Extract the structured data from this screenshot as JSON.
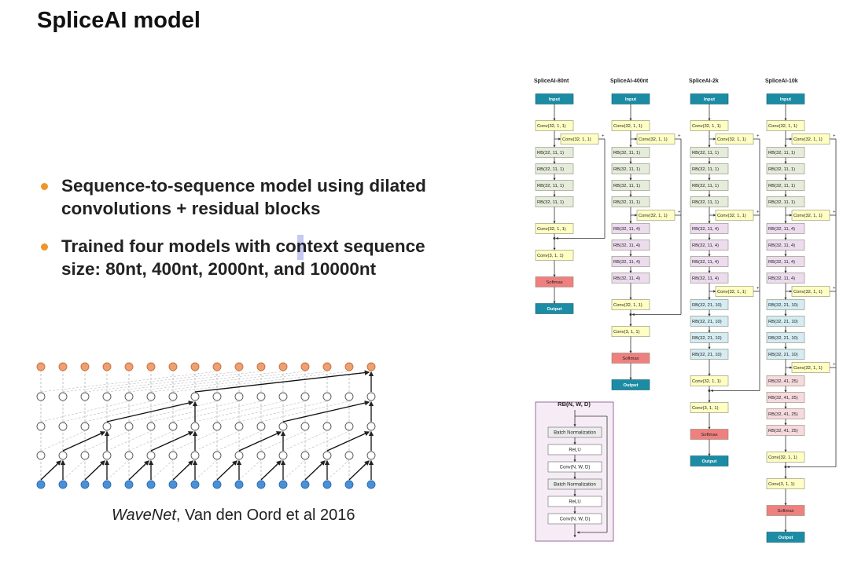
{
  "header": {
    "title": "SpliceAI model"
  },
  "bullets": [
    {
      "lines": [
        "Sequence-to-sequence model using dilated",
        "convolutions + residual blocks"
      ]
    },
    {
      "lines": [
        "Trained four models with context sequence",
        "size: 80nt, 400nt, 2000nt, and 10000nt"
      ]
    }
  ],
  "figure": {
    "caption": {
      "italic": "WaveNet",
      "rest": ", Van den Oord et al 2016"
    }
  },
  "models": [
    {
      "title": "SpliceAI-80nt",
      "nodes": [
        {
          "label": "Input",
          "color": "#1c8ca4"
        },
        {
          "label": "Conv(32, 1, 1)",
          "color": "#ffffc4"
        },
        {
          "label": "Conv(32, 1, 1)",
          "color": "#ffffc4"
        },
        {
          "label": "RB(32, 11, 1)",
          "color": "#e6ecdc"
        },
        {
          "label": "RB(32, 11, 1)",
          "color": "#e6ecdc"
        },
        {
          "label": "RB(32, 11, 1)",
          "color": "#e6ecdc"
        },
        {
          "label": "RB(32, 11, 1)",
          "color": "#e6ecdc"
        },
        {
          "label": "Conv(32, 1, 1)",
          "color": "#ffffc4"
        },
        {
          "label": "Conv(3, 1, 1)",
          "color": "#ffffc4"
        },
        {
          "label": "Softmax",
          "color": "#f08080"
        },
        {
          "label": "Output",
          "color": "#1c8ca4"
        }
      ]
    },
    {
      "title": "SpliceAI-400nt",
      "nodes": [
        {
          "label": "Input",
          "color": "#1c8ca4"
        },
        {
          "label": "Conv(32, 1, 1)",
          "color": "#ffffc4"
        },
        {
          "label": "Conv(32, 1, 1)",
          "color": "#ffffc4"
        },
        {
          "label": "RB(32, 11, 1)",
          "color": "#e6ecdc"
        },
        {
          "label": "RB(32, 11, 1)",
          "color": "#e6ecdc"
        },
        {
          "label": "RB(32, 11, 1)",
          "color": "#e6ecdc"
        },
        {
          "label": "RB(32, 11, 1)",
          "color": "#e6ecdc"
        },
        {
          "label": "Conv(32, 1, 1)",
          "color": "#ffffc4"
        },
        {
          "label": "RB(32, 11, 4)",
          "color": "#ecdcee"
        },
        {
          "label": "RB(32, 11, 4)",
          "color": "#ecdcee"
        },
        {
          "label": "RB(32, 11, 4)",
          "color": "#ecdcee"
        },
        {
          "label": "RB(32, 11, 4)",
          "color": "#ecdcee"
        },
        {
          "label": "Conv(32, 1, 1)",
          "color": "#ffffc4"
        },
        {
          "label": "Conv(3, 1, 1)",
          "color": "#ffffc4"
        },
        {
          "label": "Softmax",
          "color": "#f08080"
        },
        {
          "label": "Output",
          "color": "#1c8ca4"
        }
      ]
    },
    {
      "title": "SpliceAI-2k",
      "nodes": [
        {
          "label": "Input",
          "color": "#1c8ca4"
        },
        {
          "label": "Conv(32, 1, 1)",
          "color": "#ffffc4"
        },
        {
          "label": "Conv(32, 1, 1)",
          "color": "#ffffc4"
        },
        {
          "label": "RB(32, 11, 1)",
          "color": "#e6ecdc"
        },
        {
          "label": "RB(32, 11, 1)",
          "color": "#e6ecdc"
        },
        {
          "label": "RB(32, 11, 1)",
          "color": "#e6ecdc"
        },
        {
          "label": "RB(32, 11, 1)",
          "color": "#e6ecdc"
        },
        {
          "label": "Conv(32, 1, 1)",
          "color": "#ffffc4"
        },
        {
          "label": "RB(32, 11, 4)",
          "color": "#ecdcee"
        },
        {
          "label": "RB(32, 11, 4)",
          "color": "#ecdcee"
        },
        {
          "label": "RB(32, 11, 4)",
          "color": "#ecdcee"
        },
        {
          "label": "RB(32, 11, 4)",
          "color": "#ecdcee"
        },
        {
          "label": "Conv(32, 1, 1)",
          "color": "#ffffc4"
        },
        {
          "label": "RB(32, 21, 10)",
          "color": "#d4ecf2"
        },
        {
          "label": "RB(32, 21, 10)",
          "color": "#d4ecf2"
        },
        {
          "label": "RB(32, 21, 10)",
          "color": "#d4ecf2"
        },
        {
          "label": "RB(32, 21, 10)",
          "color": "#d4ecf2"
        },
        {
          "label": "Conv(32, 1, 1)",
          "color": "#ffffc4"
        },
        {
          "label": "Conv(3, 1, 1)",
          "color": "#ffffc4"
        },
        {
          "label": "Softmax",
          "color": "#f08080"
        },
        {
          "label": "Output",
          "color": "#1c8ca4"
        }
      ]
    },
    {
      "title": "SpliceAI-10k",
      "nodes": [
        {
          "label": "Input",
          "color": "#1c8ca4"
        },
        {
          "label": "Conv(32, 1, 1)",
          "color": "#ffffc4"
        },
        {
          "label": "Conv(32, 1, 1)",
          "color": "#ffffc4"
        },
        {
          "label": "RB(32, 11, 1)",
          "color": "#e6ecdc"
        },
        {
          "label": "RB(32, 11, 1)",
          "color": "#e6ecdc"
        },
        {
          "label": "RB(32, 11, 1)",
          "color": "#e6ecdc"
        },
        {
          "label": "RB(32, 11, 1)",
          "color": "#e6ecdc"
        },
        {
          "label": "Conv(32, 1, 1)",
          "color": "#ffffc4"
        },
        {
          "label": "RB(32, 11, 4)",
          "color": "#ecdcee"
        },
        {
          "label": "RB(32, 11, 4)",
          "color": "#ecdcee"
        },
        {
          "label": "RB(32, 11, 4)",
          "color": "#ecdcee"
        },
        {
          "label": "RB(32, 11, 4)",
          "color": "#ecdcee"
        },
        {
          "label": "Conv(32, 1, 1)",
          "color": "#ffffc4"
        },
        {
          "label": "RB(32, 21, 10)",
          "color": "#d4ecf2"
        },
        {
          "label": "RB(32, 21, 10)",
          "color": "#d4ecf2"
        },
        {
          "label": "RB(32, 21, 10)",
          "color": "#d4ecf2"
        },
        {
          "label": "RB(32, 21, 10)",
          "color": "#d4ecf2"
        },
        {
          "label": "Conv(32, 1, 1)",
          "color": "#ffffc4"
        },
        {
          "label": "RB(32, 41, 25)",
          "color": "#f6dade"
        },
        {
          "label": "RB(32, 41, 25)",
          "color": "#f6dade"
        },
        {
          "label": "RB(32, 41, 25)",
          "color": "#f6dade"
        },
        {
          "label": "RB(32, 41, 25)",
          "color": "#f6dade"
        },
        {
          "label": "Conv(32, 1, 1)",
          "color": "#ffffc4"
        },
        {
          "label": "Conv(3, 1, 1)",
          "color": "#ffffc4"
        },
        {
          "label": "Softmax",
          "color": "#f08080"
        },
        {
          "label": "Output",
          "color": "#1c8ca4"
        }
      ]
    }
  ],
  "residual_block": {
    "title": "RB(N, W, D)",
    "layers": [
      {
        "label": "Batch Normalization",
        "color": "#ececec"
      },
      {
        "label": "ReLU",
        "color": "#ffffff"
      },
      {
        "label": "Conv(N, W, D)",
        "color": "#ffffff"
      },
      {
        "label": "Batch Normalization",
        "color": "#ececec"
      },
      {
        "label": "ReLU",
        "color": "#ffffff"
      },
      {
        "label": "Conv(N, W, D)",
        "color": "#ffffff"
      }
    ]
  }
}
